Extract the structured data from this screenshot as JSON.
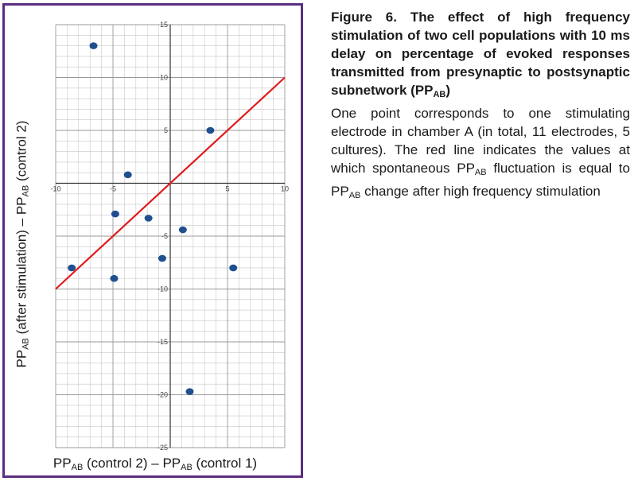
{
  "chart_data": {
    "type": "scatter",
    "xlim": [
      -10,
      10
    ],
    "ylim": [
      -25,
      15
    ],
    "x_ticks": [
      "-10",
      "-5",
      "0",
      "5",
      "10"
    ],
    "y_ticks": [
      "15",
      "10",
      "5",
      "0",
      "-5",
      "-10",
      "-15",
      "-20",
      "-25"
    ],
    "grid": true,
    "xlabel": {
      "pre": "PP",
      "sub1": "AB",
      "mid": " (control 2) – PP",
      "sub2": "AB",
      "post": " (control 1)"
    },
    "ylabel": {
      "pre": "PP",
      "sub1": "AB",
      "mid": " (after stimulation) – PP",
      "sub2": "AB",
      "post": " (control 2)"
    },
    "series": [
      {
        "points": [
          {
            "x": -6.7,
            "y": 13.0
          },
          {
            "x": 3.5,
            "y": 5.0
          },
          {
            "x": -3.7,
            "y": 0.8
          },
          {
            "x": -4.8,
            "y": -2.9
          },
          {
            "x": -1.9,
            "y": -3.3
          },
          {
            "x": 1.1,
            "y": -4.4
          },
          {
            "x": -0.7,
            "y": -7.1
          },
          {
            "x": -8.6,
            "y": -8.0
          },
          {
            "x": -4.9,
            "y": -9.0
          },
          {
            "x": 5.5,
            "y": -8.0
          },
          {
            "x": 1.7,
            "y": -19.7
          }
        ],
        "color": "#1f4f8f"
      }
    ],
    "reference_line": {
      "from": [
        -10,
        -10
      ],
      "to": [
        10,
        10
      ],
      "color": "#e01b1b"
    }
  },
  "caption": {
    "title_pre": "Figure 6. The effect of high frequency stimulation of two cell populations with 10 ms delay on percentage of evoked responses transmitted from presynaptic to postsynaptic subnetwork (PP",
    "title_sub": "AB",
    "title_post": ")",
    "body_1": "One point corresponds to one stimulating electrode in chamber A (in total, 11 electrodes, 5 cultures). The red line indicates the values at which spontaneous PP",
    "body_sub1": "AB",
    "body_2": " fluctuation is equal to PP",
    "body_sub2": "AB",
    "body_3": " change after high frequency stimulation"
  }
}
